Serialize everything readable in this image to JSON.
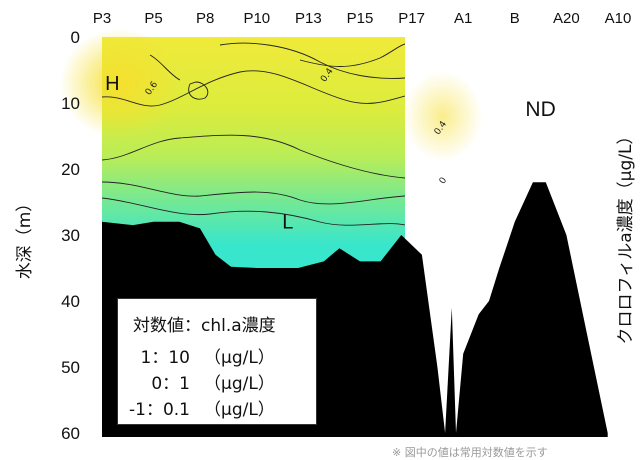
{
  "chart_data": {
    "type": "heatmap",
    "title": "",
    "stations": [
      "P3",
      "P5",
      "P8",
      "P10",
      "P13",
      "P15",
      "P17",
      "A1",
      "B",
      "A20",
      "A10"
    ],
    "ylabel": "水深（m）",
    "y_ticks": [
      "0",
      "10",
      "20",
      "30",
      "40",
      "50",
      "60"
    ],
    "ylim": [
      0,
      60
    ],
    "y_inverted": true,
    "colorbar_label": "クロロフィルa濃度（μg/L）",
    "contour_levels": [
      {
        "value": 0.6,
        "label": "0.6",
        "station_pos": 1.0,
        "depth": 8
      },
      {
        "value": 0.4,
        "label": "0.4",
        "station_pos": 4.4,
        "depth": 6
      },
      {
        "value": 0.4,
        "label": "0.4",
        "station_pos": 6.6,
        "depth": 14
      },
      {
        "value": 0,
        "label": "0",
        "station_pos": 6.65,
        "depth": 22
      }
    ],
    "region_labels": [
      {
        "text": "H",
        "meaning": "high",
        "station_pos": 0.2,
        "depth": 8
      },
      {
        "text": "L",
        "meaning": "low",
        "station_pos": 3.6,
        "depth": 29
      },
      {
        "text": "ND",
        "meaning": "no data",
        "station_pos": 8.5,
        "depth": 12
      }
    ],
    "bottom_depth_profile": [
      {
        "station_pos": 0.0,
        "depth": 28
      },
      {
        "station_pos": 0.6,
        "depth": 28.5
      },
      {
        "station_pos": 1.0,
        "depth": 28
      },
      {
        "station_pos": 1.5,
        "depth": 28
      },
      {
        "station_pos": 1.9,
        "depth": 29
      },
      {
        "station_pos": 2.2,
        "depth": 33
      },
      {
        "station_pos": 2.5,
        "depth": 34.8
      },
      {
        "station_pos": 3.0,
        "depth": 35
      },
      {
        "station_pos": 3.8,
        "depth": 35
      },
      {
        "station_pos": 4.3,
        "depth": 34
      },
      {
        "station_pos": 4.6,
        "depth": 32
      },
      {
        "station_pos": 5.0,
        "depth": 34
      },
      {
        "station_pos": 5.4,
        "depth": 34
      },
      {
        "station_pos": 5.8,
        "depth": 30
      },
      {
        "station_pos": 6.2,
        "depth": 33
      },
      {
        "station_pos": 6.5,
        "depth": 50
      },
      {
        "station_pos": 6.65,
        "depth": 60
      },
      {
        "station_pos": 6.78,
        "depth": 41
      },
      {
        "station_pos": 6.86,
        "depth": 60
      },
      {
        "station_pos": 7.0,
        "depth": 48
      },
      {
        "station_pos": 7.3,
        "depth": 42
      },
      {
        "station_pos": 7.5,
        "depth": 40
      },
      {
        "station_pos": 7.7,
        "depth": 35
      },
      {
        "station_pos": 8.0,
        "depth": 28
      },
      {
        "station_pos": 8.35,
        "depth": 22
      },
      {
        "station_pos": 8.6,
        "depth": 22
      },
      {
        "station_pos": 9.0,
        "depth": 30
      },
      {
        "station_pos": 9.4,
        "depth": 45
      },
      {
        "station_pos": 9.8,
        "depth": 60
      }
    ],
    "legend": {
      "title": "対数値：chl.a濃度",
      "entries": [
        {
          "log_value": "1",
          "concentration": "10",
          "unit": "（μg/L）"
        },
        {
          "log_value": "0",
          "concentration": "1",
          "unit": "（μg/L）"
        },
        {
          "log_value": "-1",
          "concentration": "0.1",
          "unit": "（μg/L）"
        }
      ]
    },
    "colors": {
      "high": "#f2e93a",
      "mid": "#b9ed57",
      "low": "#35e8d0",
      "seabed": "#000000",
      "no_data": "#ffffff"
    },
    "footnote": "※ 図中の値は常用対数値を示す"
  }
}
